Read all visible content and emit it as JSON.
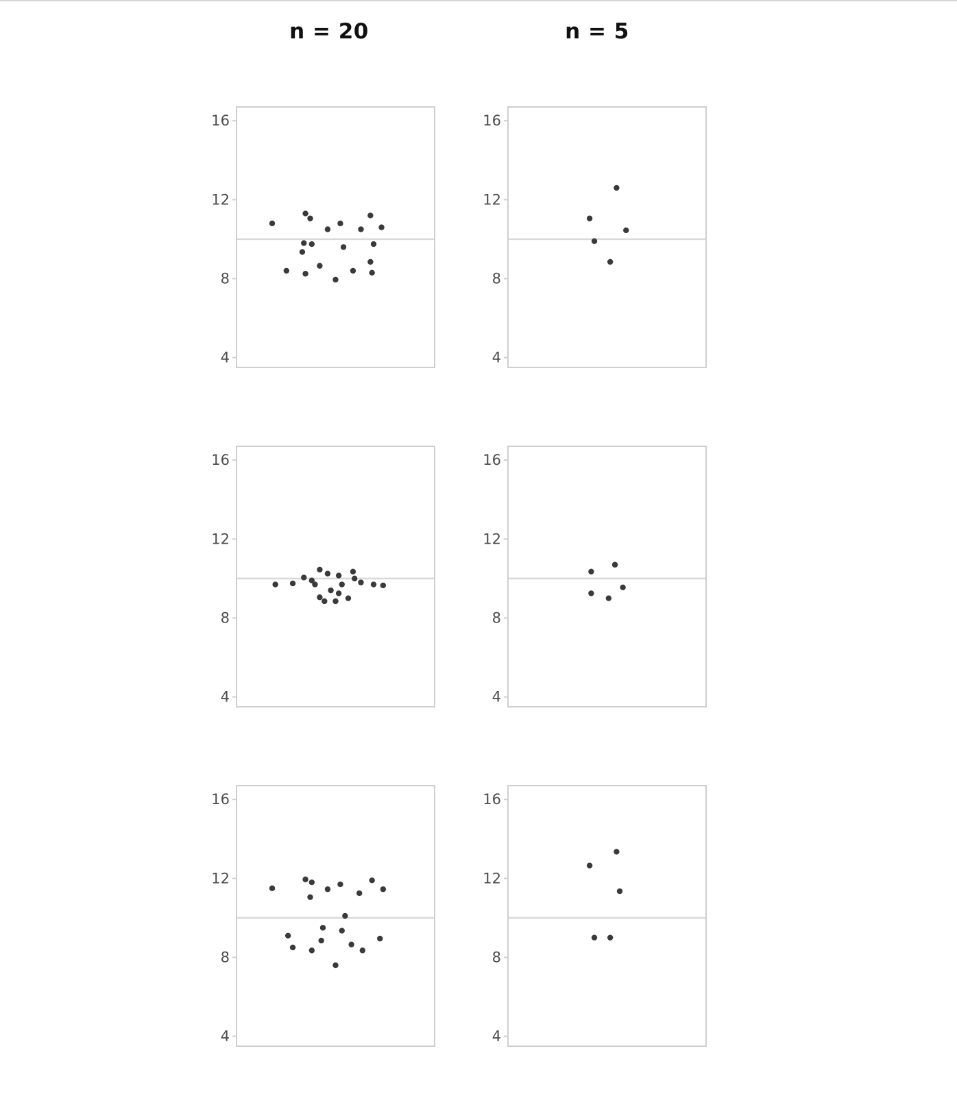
{
  "column_titles": [
    "n = 20",
    "n = 5"
  ],
  "colors": {
    "point": "#3a3a3a",
    "reference_line": "#d9d9d9",
    "panel_border": "#cfcfcf",
    "tick_label": "#4d4d4d"
  },
  "chart_data": [
    {
      "type": "scatter",
      "row": 1,
      "column": "n = 20",
      "ylim": [
        3.5,
        16.7
      ],
      "yticks": [
        4,
        8,
        12,
        16
      ],
      "reference_line_y": 10,
      "grid": false,
      "points": [
        {
          "x": -0.8,
          "y": 10.8
        },
        {
          "x": -0.38,
          "y": 11.3
        },
        {
          "x": -0.32,
          "y": 11.05
        },
        {
          "x": 0.44,
          "y": 11.2
        },
        {
          "x": 0.06,
          "y": 10.8
        },
        {
          "x": 0.58,
          "y": 10.6
        },
        {
          "x": -0.1,
          "y": 10.5
        },
        {
          "x": 0.32,
          "y": 10.5
        },
        {
          "x": -0.4,
          "y": 9.8
        },
        {
          "x": -0.3,
          "y": 9.75
        },
        {
          "x": 0.48,
          "y": 9.75
        },
        {
          "x": 0.1,
          "y": 9.6
        },
        {
          "x": -0.42,
          "y": 9.35
        },
        {
          "x": -0.2,
          "y": 8.65
        },
        {
          "x": 0.44,
          "y": 8.85
        },
        {
          "x": -0.62,
          "y": 8.4
        },
        {
          "x": -0.38,
          "y": 8.25
        },
        {
          "x": 0.22,
          "y": 8.4
        },
        {
          "x": 0.46,
          "y": 8.3
        },
        {
          "x": 0.0,
          "y": 7.95
        }
      ]
    },
    {
      "type": "scatter",
      "row": 1,
      "column": "n = 5",
      "ylim": [
        3.5,
        16.7
      ],
      "yticks": [
        4,
        8,
        12,
        16
      ],
      "reference_line_y": 10,
      "grid": false,
      "points": [
        {
          "x": 0.12,
          "y": 12.6
        },
        {
          "x": -0.22,
          "y": 11.05
        },
        {
          "x": 0.24,
          "y": 10.45
        },
        {
          "x": -0.16,
          "y": 9.9
        },
        {
          "x": 0.04,
          "y": 8.85
        }
      ]
    },
    {
      "type": "scatter",
      "row": 2,
      "column": "n = 20",
      "ylim": [
        3.5,
        16.7
      ],
      "yticks": [
        4,
        8,
        12,
        16
      ],
      "reference_line_y": 10,
      "grid": false,
      "points": [
        {
          "x": -0.2,
          "y": 10.45
        },
        {
          "x": 0.22,
          "y": 10.35
        },
        {
          "x": -0.1,
          "y": 10.25
        },
        {
          "x": -0.4,
          "y": 10.05
        },
        {
          "x": 0.04,
          "y": 10.15
        },
        {
          "x": 0.24,
          "y": 10.0
        },
        {
          "x": -0.3,
          "y": 9.9
        },
        {
          "x": 0.32,
          "y": 9.8
        },
        {
          "x": -0.76,
          "y": 9.7
        },
        {
          "x": -0.54,
          "y": 9.75
        },
        {
          "x": -0.26,
          "y": 9.7
        },
        {
          "x": 0.08,
          "y": 9.7
        },
        {
          "x": 0.48,
          "y": 9.7
        },
        {
          "x": 0.6,
          "y": 9.65
        },
        {
          "x": -0.06,
          "y": 9.4
        },
        {
          "x": 0.04,
          "y": 9.25
        },
        {
          "x": -0.2,
          "y": 9.05
        },
        {
          "x": 0.16,
          "y": 9.0
        },
        {
          "x": -0.14,
          "y": 8.85
        },
        {
          "x": 0.0,
          "y": 8.85
        }
      ]
    },
    {
      "type": "scatter",
      "row": 2,
      "column": "n = 5",
      "ylim": [
        3.5,
        16.7
      ],
      "yticks": [
        4,
        8,
        12,
        16
      ],
      "reference_line_y": 10,
      "grid": false,
      "points": [
        {
          "x": 0.1,
          "y": 10.7
        },
        {
          "x": -0.2,
          "y": 10.35
        },
        {
          "x": 0.2,
          "y": 9.55
        },
        {
          "x": -0.2,
          "y": 9.25
        },
        {
          "x": 0.02,
          "y": 9.0
        }
      ]
    },
    {
      "type": "scatter",
      "row": 3,
      "column": "n = 20",
      "ylim": [
        3.5,
        16.7
      ],
      "yticks": [
        4,
        8,
        12,
        16
      ],
      "reference_line_y": 10,
      "grid": false,
      "points": [
        {
          "x": -0.38,
          "y": 11.95
        },
        {
          "x": -0.3,
          "y": 11.8
        },
        {
          "x": 0.46,
          "y": 11.9
        },
        {
          "x": 0.06,
          "y": 11.7
        },
        {
          "x": -0.8,
          "y": 11.5
        },
        {
          "x": -0.1,
          "y": 11.45
        },
        {
          "x": 0.6,
          "y": 11.45
        },
        {
          "x": 0.3,
          "y": 11.25
        },
        {
          "x": -0.32,
          "y": 11.05
        },
        {
          "x": 0.12,
          "y": 10.1
        },
        {
          "x": -0.16,
          "y": 9.5
        },
        {
          "x": 0.08,
          "y": 9.35
        },
        {
          "x": -0.6,
          "y": 9.1
        },
        {
          "x": -0.18,
          "y": 8.85
        },
        {
          "x": 0.56,
          "y": 8.95
        },
        {
          "x": 0.2,
          "y": 8.65
        },
        {
          "x": -0.54,
          "y": 8.5
        },
        {
          "x": -0.3,
          "y": 8.35
        },
        {
          "x": 0.34,
          "y": 8.35
        },
        {
          "x": 0.0,
          "y": 7.6
        }
      ]
    },
    {
      "type": "scatter",
      "row": 3,
      "column": "n = 5",
      "ylim": [
        3.5,
        16.7
      ],
      "yticks": [
        4,
        8,
        12,
        16
      ],
      "reference_line_y": 10,
      "grid": false,
      "points": [
        {
          "x": 0.12,
          "y": 13.35
        },
        {
          "x": -0.22,
          "y": 12.65
        },
        {
          "x": 0.16,
          "y": 11.35
        },
        {
          "x": -0.16,
          "y": 9.0
        },
        {
          "x": 0.04,
          "y": 9.0
        }
      ]
    }
  ]
}
